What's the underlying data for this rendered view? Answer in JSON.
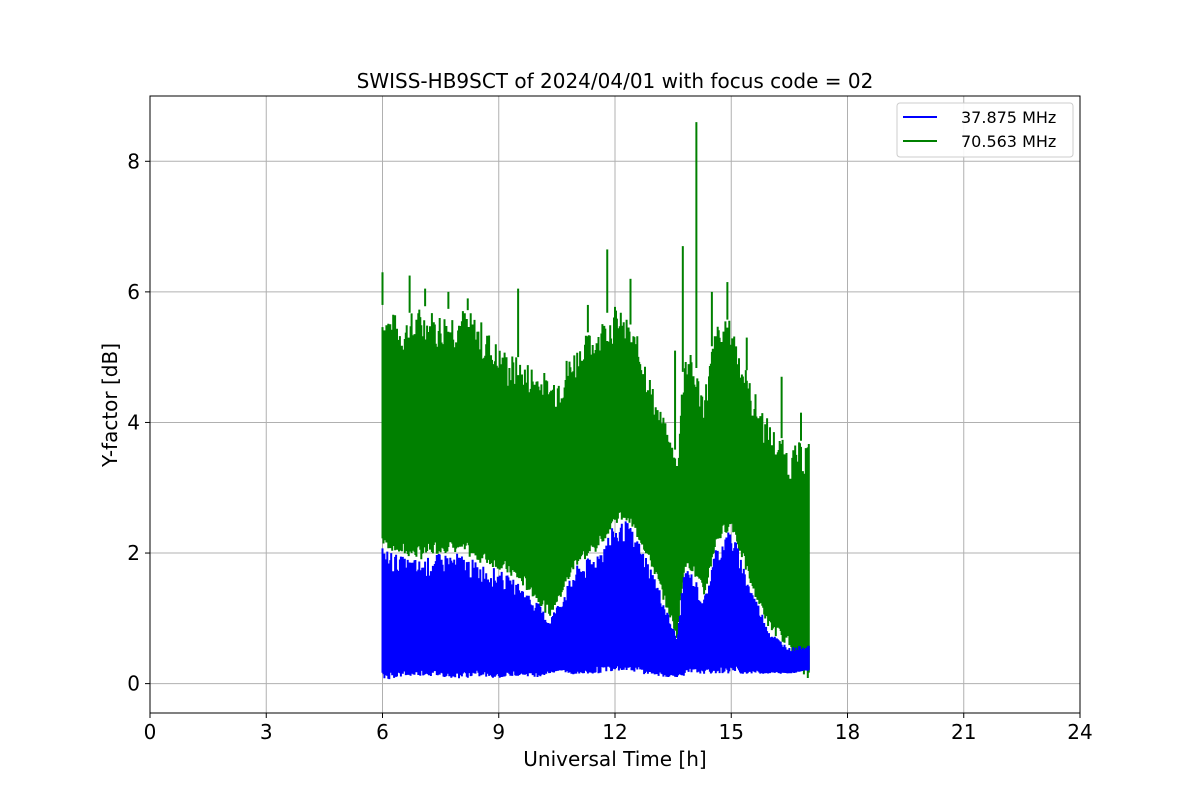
{
  "chart_data": {
    "type": "line",
    "title": "SWISS-HB9SCT of 2024/04/01 with focus code = 02",
    "xlabel": "Universal Time [h]",
    "ylabel": "Y-factor [dB]",
    "xlim": [
      0,
      24
    ],
    "ylim": [
      -0.45,
      9.0
    ],
    "xticks": [
      0,
      3,
      6,
      9,
      12,
      15,
      18,
      21,
      24
    ],
    "yticks": [
      0,
      2,
      4,
      6,
      8
    ],
    "grid": true,
    "legend_position": "top-right",
    "series": [
      {
        "name": "37.875 MHz",
        "color": "#0000ff",
        "x": [
          6.0,
          6.5,
          7.0,
          7.5,
          8.0,
          8.5,
          9.0,
          9.5,
          10.0,
          10.3,
          10.6,
          11.0,
          11.5,
          12.0,
          12.3,
          12.7,
          13.0,
          13.3,
          13.6,
          13.8,
          14.0,
          14.3,
          14.6,
          15.0,
          15.5,
          16.0,
          16.5,
          17.0
        ],
        "upper": [
          2.1,
          1.95,
          1.9,
          2.0,
          2.0,
          1.85,
          1.75,
          1.55,
          1.25,
          1.0,
          1.3,
          1.8,
          2.0,
          2.45,
          2.5,
          2.1,
          1.7,
          1.2,
          0.7,
          1.8,
          1.7,
          1.3,
          2.1,
          2.4,
          1.5,
          0.8,
          0.55,
          0.6
        ],
        "lower": [
          0.05,
          0.1,
          0.12,
          0.1,
          0.08,
          0.1,
          0.08,
          0.12,
          0.1,
          0.15,
          0.18,
          0.12,
          0.15,
          0.2,
          0.2,
          0.15,
          0.12,
          0.1,
          0.1,
          0.12,
          0.15,
          0.15,
          0.15,
          0.15,
          0.15,
          0.15,
          0.15,
          0.2
        ]
      },
      {
        "name": "70.563 MHz",
        "color": "#008000",
        "x": [
          6.0,
          6.5,
          7.0,
          7.5,
          8.0,
          8.5,
          9.0,
          9.5,
          10.0,
          10.3,
          10.6,
          11.0,
          11.5,
          12.0,
          12.3,
          12.7,
          13.0,
          13.3,
          13.6,
          13.8,
          14.0,
          14.3,
          14.6,
          15.0,
          15.5,
          16.0,
          16.5,
          17.0
        ],
        "upper": [
          5.8,
          5.6,
          5.8,
          5.7,
          5.8,
          5.6,
          5.2,
          5.0,
          4.9,
          4.7,
          4.9,
          5.2,
          5.5,
          5.8,
          5.6,
          5.2,
          4.5,
          4.0,
          3.5,
          5.2,
          5.0,
          4.5,
          5.5,
          5.6,
          4.6,
          4.0,
          3.6,
          3.8
        ],
        "lower": [
          2.1,
          1.95,
          1.9,
          2.0,
          2.0,
          1.85,
          1.75,
          1.55,
          1.25,
          1.0,
          1.3,
          1.8,
          2.0,
          2.45,
          2.5,
          2.1,
          1.7,
          1.2,
          0.7,
          1.8,
          1.7,
          1.3,
          2.1,
          2.4,
          1.5,
          0.8,
          0.55,
          0.0
        ],
        "spikes": [
          [
            6.0,
            6.3
          ],
          [
            6.7,
            6.25
          ],
          [
            7.1,
            6.05
          ],
          [
            7.7,
            6.0
          ],
          [
            8.2,
            5.9
          ],
          [
            9.5,
            6.05
          ],
          [
            11.3,
            5.8
          ],
          [
            11.8,
            6.65
          ],
          [
            12.4,
            6.2
          ],
          [
            13.55,
            5.1
          ],
          [
            13.75,
            6.7
          ],
          [
            14.1,
            8.6
          ],
          [
            14.5,
            6.0
          ],
          [
            14.9,
            6.15
          ],
          [
            15.4,
            5.3
          ],
          [
            16.3,
            4.7
          ],
          [
            16.8,
            4.15
          ]
        ]
      }
    ]
  }
}
